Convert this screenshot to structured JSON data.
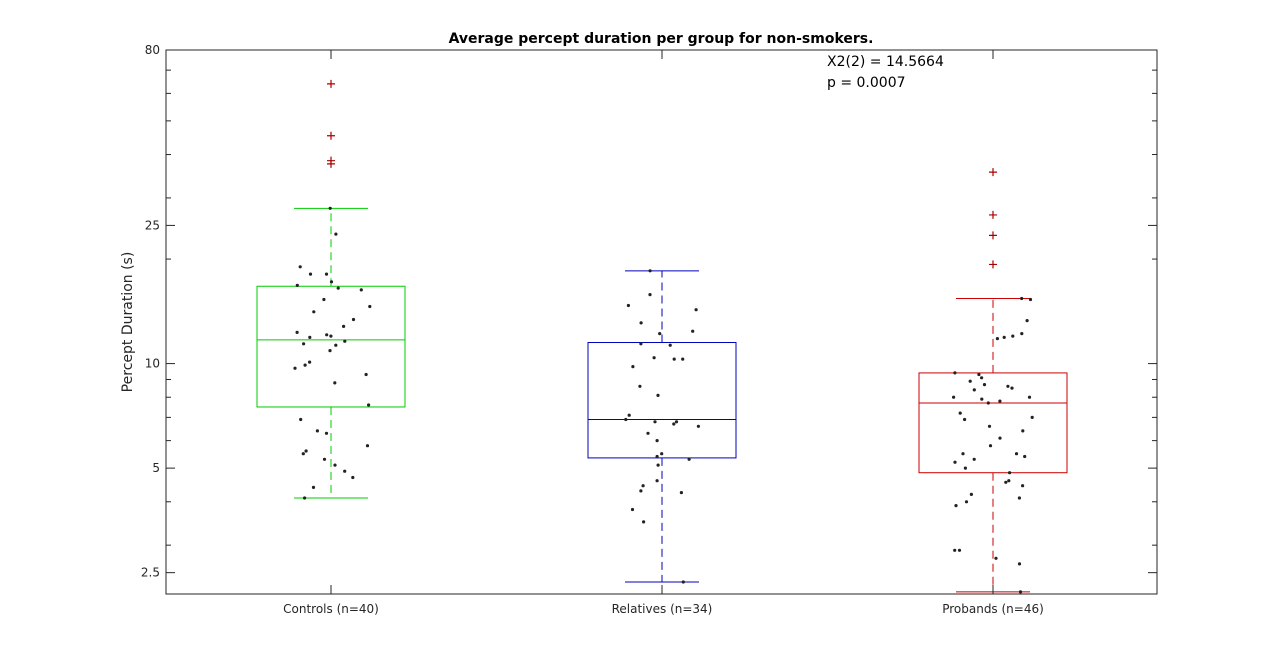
{
  "chart_data": {
    "type": "box",
    "title": "Average percept duration per group for non-smokers.",
    "xlabel": "",
    "ylabel": "Percept Duration (s)",
    "yscale": "log",
    "ylim": [
      2.17,
      80
    ],
    "yticks": [
      {
        "value": 2.5,
        "label": "2.5"
      },
      {
        "value": 5,
        "label": "5"
      },
      {
        "value": 10,
        "label": "10"
      },
      {
        "value": 25,
        "label": "25"
      },
      {
        "value": 80,
        "label": "80"
      }
    ],
    "annotations": [
      "X2(2) = 14.5664",
      "p = 0.0007"
    ],
    "grid": false,
    "groups": [
      {
        "label": "Controls (n=40)",
        "color": "#00cc00",
        "whisker_low": 4.1,
        "q1": 7.5,
        "median": 11.7,
        "q3": 16.7,
        "whisker_high": 28.0,
        "outliers": [
          37.6,
          38.4,
          45.3,
          63.9
        ],
        "points": [
          28.0,
          23.6,
          19.0,
          18.1,
          18.1,
          17.2,
          16.8,
          16.3,
          16.5,
          15.3,
          14.1,
          13.4,
          12.8,
          12.3,
          12.0,
          11.9,
          11.6,
          11.4,
          11.3,
          10.9,
          9.9,
          9.7,
          9.3,
          7.6,
          6.9,
          6.3,
          5.8,
          5.6,
          5.3,
          5.1,
          4.9,
          4.4,
          4.1,
          14.6,
          12.1,
          10.1,
          8.8,
          6.4,
          5.5,
          4.7
        ]
      },
      {
        "label": "Relatives (n=34)",
        "color": "#0000bb",
        "whisker_low": 2.35,
        "q1": 5.35,
        "median": 6.9,
        "q3": 11.5,
        "whisker_high": 18.5,
        "outliers": [],
        "points": [
          18.5,
          15.8,
          14.7,
          14.3,
          13.1,
          12.4,
          12.2,
          11.4,
          11.3,
          10.4,
          10.3,
          10.3,
          9.8,
          8.6,
          8.1,
          7.1,
          6.9,
          6.8,
          6.8,
          6.7,
          6.6,
          6.3,
          6.0,
          5.5,
          5.4,
          5.3,
          5.1,
          4.6,
          4.45,
          4.3,
          4.25,
          3.8,
          3.5,
          2.35
        ]
      },
      {
        "label": "Probands (n=46)",
        "color": "#cc0000",
        "whisker_low": 2.2,
        "q1": 4.85,
        "median": 7.7,
        "q3": 9.4,
        "whisker_high": 15.4,
        "outliers": [
          19.3,
          23.4,
          26.8,
          35.6
        ],
        "points": [
          15.4,
          15.3,
          13.3,
          12.2,
          12.0,
          11.9,
          11.8,
          9.4,
          9.3,
          9.1,
          8.9,
          8.7,
          8.6,
          8.5,
          8.4,
          8.0,
          8.0,
          7.9,
          7.8,
          7.7,
          7.2,
          7.0,
          6.6,
          6.4,
          6.1,
          5.8,
          5.5,
          5.5,
          5.4,
          5.3,
          5.2,
          5.0,
          4.85,
          4.6,
          4.55,
          4.45,
          4.2,
          4.1,
          4.0,
          3.9,
          2.9,
          2.9,
          2.75,
          2.65,
          2.2,
          6.9
        ]
      }
    ]
  }
}
